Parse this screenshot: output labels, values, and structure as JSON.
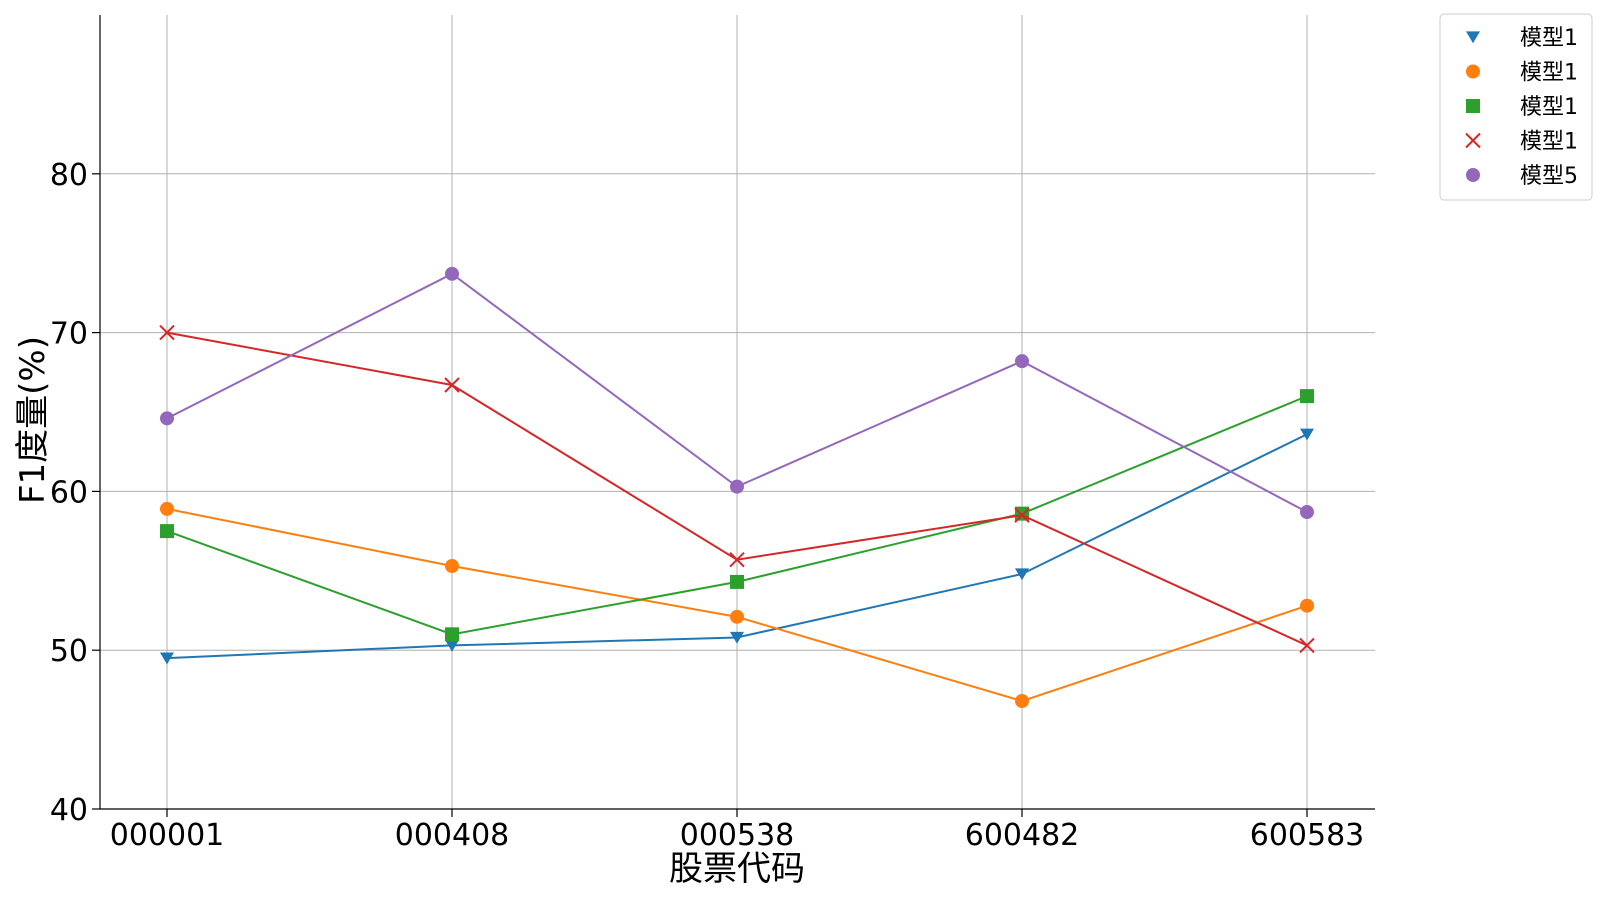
{
  "chart_data": {
    "type": "line",
    "categories": [
      "000001",
      "000408",
      "000538",
      "600482",
      "600583"
    ],
    "xlabel": "股票代码",
    "ylabel": "F1度量(%)",
    "ylim": [
      40,
      90
    ],
    "yticks": [
      40,
      50,
      60,
      70,
      80
    ],
    "grid": true,
    "legend_position": "outside-top-right",
    "series": [
      {
        "name": "模型1",
        "marker": "triangle-down",
        "color": "#1f77b4",
        "values": [
          49.5,
          50.3,
          50.8,
          54.8,
          63.6
        ]
      },
      {
        "name": "模型1",
        "marker": "circle",
        "color": "#ff7f0e",
        "values": [
          58.9,
          55.3,
          52.1,
          46.8,
          52.8
        ]
      },
      {
        "name": "模型1",
        "marker": "square",
        "color": "#2ca02c",
        "values": [
          57.5,
          51.0,
          54.3,
          58.6,
          66.0
        ]
      },
      {
        "name": "模型1",
        "marker": "x",
        "color": "#d62728",
        "values": [
          70.0,
          66.7,
          55.7,
          58.5,
          50.3
        ]
      },
      {
        "name": "模型5",
        "marker": "circle",
        "color": "#9467bd",
        "values": [
          64.6,
          73.7,
          60.3,
          68.2,
          58.7
        ]
      }
    ]
  }
}
